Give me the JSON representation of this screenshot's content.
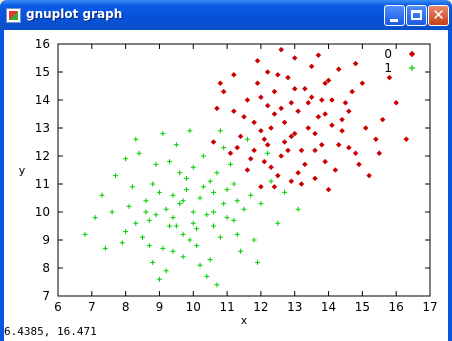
{
  "window": {
    "title": "gnuplot graph",
    "app_icon": "gnuplot-app-icon",
    "minimize_icon": "minimize-icon",
    "maximize_icon": "maximize-icon",
    "close_icon": "close-icon",
    "close_glyph": "✕"
  },
  "status": {
    "coordinates": "6.4385, 16.471"
  },
  "chart_data": {
    "type": "scatter",
    "xlabel": "x",
    "ylabel": "y",
    "xlim": [
      6,
      17
    ],
    "ylim": [
      7,
      16
    ],
    "xticks": [
      "6",
      "7",
      "8",
      "9",
      "10",
      "11",
      "12",
      "13",
      "14",
      "15",
      "16",
      "17"
    ],
    "yticks": [
      "7",
      "8",
      "9",
      "10",
      "11",
      "12",
      "13",
      "14",
      "15",
      "16"
    ],
    "grid": false,
    "legend_position": "top-right",
    "series": [
      {
        "name": "0",
        "marker": "diamond",
        "color": "#cc0000",
        "points": [
          [
            13.0,
            12.8
          ],
          [
            12.4,
            13.5
          ],
          [
            13.6,
            12.2
          ],
          [
            12.9,
            13.9
          ],
          [
            14.1,
            13.1
          ],
          [
            12.2,
            12.4
          ],
          [
            13.3,
            14.4
          ],
          [
            11.8,
            13.2
          ],
          [
            13.9,
            11.8
          ],
          [
            12.6,
            12.0
          ],
          [
            14.6,
            13.6
          ],
          [
            13.1,
            11.4
          ],
          [
            12.0,
            14.1
          ],
          [
            13.7,
            13.4
          ],
          [
            12.8,
            14.8
          ],
          [
            11.4,
            12.7
          ],
          [
            14.3,
            12.4
          ],
          [
            12.5,
            11.3
          ],
          [
            13.5,
            15.2
          ],
          [
            11.9,
            14.6
          ],
          [
            15.1,
            13.0
          ],
          [
            12.3,
            13.0
          ],
          [
            13.8,
            14.0
          ],
          [
            14.8,
            12.1
          ],
          [
            11.2,
            13.6
          ],
          [
            12.7,
            12.5
          ],
          [
            13.4,
            13.0
          ],
          [
            12.1,
            11.8
          ],
          [
            14.0,
            14.7
          ],
          [
            13.2,
            12.2
          ],
          [
            11.6,
            14.0
          ],
          [
            14.5,
            13.9
          ],
          [
            12.9,
            11.1
          ],
          [
            13.6,
            12.8
          ],
          [
            12.4,
            14.3
          ],
          [
            15.4,
            12.6
          ],
          [
            11.3,
            12.3
          ],
          [
            13.0,
            15.5
          ],
          [
            14.2,
            11.5
          ],
          [
            12.6,
            13.7
          ],
          [
            13.9,
            13.5
          ],
          [
            11.7,
            11.9
          ],
          [
            12.2,
            15.0
          ],
          [
            14.7,
            14.3
          ],
          [
            13.3,
            11.7
          ],
          [
            12.0,
            12.9
          ],
          [
            15.0,
            14.6
          ],
          [
            10.9,
            14.3
          ],
          [
            13.5,
            14.1
          ],
          [
            12.8,
            12.2
          ],
          [
            14.4,
            12.9
          ],
          [
            11.5,
            13.4
          ],
          [
            13.1,
            13.6
          ],
          [
            12.3,
            11.6
          ],
          [
            13.8,
            12.4
          ],
          [
            14.9,
            11.7
          ],
          [
            12.5,
            14.9
          ],
          [
            11.1,
            12.1
          ],
          [
            13.6,
            11.2
          ],
          [
            14.1,
            14.0
          ],
          [
            12.7,
            13.2
          ],
          [
            15.6,
            13.3
          ],
          [
            12.0,
            10.9
          ],
          [
            13.4,
            13.9
          ],
          [
            11.8,
            12.2
          ],
          [
            14.6,
            12.3
          ],
          [
            13.0,
            14.4
          ],
          [
            12.2,
            13.8
          ],
          [
            14.3,
            15.1
          ],
          [
            12.9,
            12.7
          ],
          [
            16.3,
            12.6
          ],
          [
            10.7,
            13.7
          ],
          [
            15.8,
            14.8
          ],
          [
            11.9,
            15.4
          ],
          [
            14.0,
            10.8
          ],
          [
            12.6,
            15.8
          ],
          [
            15.2,
            11.3
          ],
          [
            10.6,
            12.5
          ],
          [
            13.7,
            15.6
          ],
          [
            16.0,
            13.9
          ],
          [
            11.2,
            14.9
          ],
          [
            12.4,
            10.9
          ],
          [
            14.8,
            15.3
          ],
          [
            10.8,
            14.6
          ],
          [
            13.2,
            11.0
          ],
          [
            15.5,
            12.1
          ],
          [
            11.6,
            11.5
          ],
          [
            13.9,
            14.6
          ],
          [
            12.1,
            12.6
          ],
          [
            14.4,
            13.3
          ]
        ]
      },
      {
        "name": "1",
        "marker": "plus",
        "color": "#00cc00",
        "points": [
          [
            10.0,
            10.0
          ],
          [
            9.4,
            10.6
          ],
          [
            10.6,
            9.5
          ],
          [
            9.7,
            9.2
          ],
          [
            10.3,
            10.9
          ],
          [
            8.9,
            9.9
          ],
          [
            10.9,
            10.3
          ],
          [
            9.2,
            10.1
          ],
          [
            10.1,
            8.8
          ],
          [
            9.8,
            11.2
          ],
          [
            11.2,
            9.7
          ],
          [
            8.6,
            10.4
          ],
          [
            10.4,
            9.9
          ],
          [
            9.5,
            9.5
          ],
          [
            10.7,
            11.4
          ],
          [
            9.1,
            8.7
          ],
          [
            11.0,
            10.8
          ],
          [
            8.3,
            9.6
          ],
          [
            10.2,
            10.5
          ],
          [
            9.9,
            9.0
          ],
          [
            11.5,
            10.1
          ],
          [
            8.8,
            11.0
          ],
          [
            9.6,
            10.3
          ],
          [
            10.5,
            8.3
          ],
          [
            9.3,
            11.8
          ],
          [
            11.3,
            9.2
          ],
          [
            8.5,
            9.1
          ],
          [
            10.0,
            11.6
          ],
          [
            9.0,
            10.7
          ],
          [
            10.8,
            9.1
          ],
          [
            8.1,
            10.2
          ],
          [
            11.7,
            10.6
          ],
          [
            9.7,
            8.4
          ],
          [
            10.3,
            12.0
          ],
          [
            8.7,
            8.8
          ],
          [
            11.1,
            11.7
          ],
          [
            9.4,
            9.8
          ],
          [
            10.6,
            10.0
          ],
          [
            8.2,
            10.9
          ],
          [
            11.8,
            9.0
          ],
          [
            9.2,
            7.9
          ],
          [
            10.9,
            12.3
          ],
          [
            8.0,
            9.3
          ],
          [
            12.0,
            10.3
          ],
          [
            9.8,
            10.8
          ],
          [
            10.1,
            9.4
          ],
          [
            8.9,
            11.7
          ],
          [
            11.4,
            8.6
          ],
          [
            9.5,
            12.4
          ],
          [
            7.6,
            10.0
          ],
          [
            12.3,
            11.1
          ],
          [
            10.4,
            7.7
          ],
          [
            8.4,
            12.1
          ],
          [
            11.6,
            12.6
          ],
          [
            7.9,
            8.9
          ],
          [
            9.1,
            12.8
          ],
          [
            12.5,
            9.6
          ],
          [
            10.7,
            7.4
          ],
          [
            7.3,
            10.6
          ],
          [
            9.6,
            11.4
          ],
          [
            10.2,
            8.1
          ],
          [
            8.6,
            10.0
          ],
          [
            11.3,
            10.4
          ],
          [
            9.9,
            12.9
          ],
          [
            7.7,
            11.3
          ],
          [
            12.7,
            10.7
          ],
          [
            8.8,
            8.2
          ],
          [
            10.5,
            11.1
          ],
          [
            9.3,
            9.5
          ],
          [
            11.0,
            9.8
          ],
          [
            6.8,
            9.2
          ],
          [
            8.0,
            11.9
          ],
          [
            12.2,
            12.1
          ],
          [
            9.0,
            7.6
          ],
          [
            13.1,
            10.1
          ],
          [
            7.4,
            8.7
          ],
          [
            11.9,
            8.2
          ],
          [
            8.3,
            12.6
          ],
          [
            10.8,
            12.9
          ],
          [
            7.1,
            9.8
          ],
          [
            9.7,
            10.4
          ],
          [
            10.0,
            9.6
          ],
          [
            8.7,
            9.7
          ],
          [
            11.2,
            11.0
          ],
          [
            9.4,
            8.6
          ],
          [
            10.6,
            10.7
          ]
        ]
      }
    ]
  }
}
